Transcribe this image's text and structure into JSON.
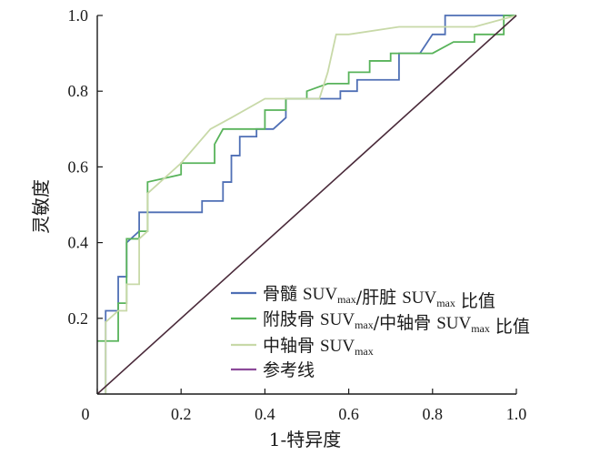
{
  "chart_data": {
    "type": "line",
    "xlabel": "1-特异度",
    "ylabel": "灵敏度",
    "xlim": [
      0,
      1
    ],
    "ylim": [
      0,
      1
    ],
    "x_ticks": [
      "0",
      "0.2",
      "0.4",
      "0.6",
      "0.8",
      "1.0"
    ],
    "y_ticks": [
      "0.2",
      "0.4",
      "0.6",
      "0.8",
      "1.0"
    ],
    "x_tick_values": [
      0,
      0.2,
      0.4,
      0.6,
      0.8,
      1.0
    ],
    "y_tick_values": [
      0.2,
      0.4,
      0.6,
      0.8,
      1.0
    ],
    "grid": false,
    "legend_position": "bottom-right",
    "series": [
      {
        "name": "骨髓 SUVmax/肝脏 SUVmax 比值",
        "legend": [
          {
            "t": "骨髓 ",
            "k": "cjk"
          },
          {
            "t": "SUV",
            "k": "latin"
          },
          {
            "t": "max",
            "k": "sub"
          },
          {
            "t": "/肝脏 ",
            "k": "cjk"
          },
          {
            "t": "SUV",
            "k": "latin"
          },
          {
            "t": "max",
            "k": "sub"
          },
          {
            "t": " 比值",
            "k": "cjk"
          }
        ],
        "color": "#4f6fb5",
        "points": [
          [
            0.02,
            0.0
          ],
          [
            0.02,
            0.22
          ],
          [
            0.05,
            0.22
          ],
          [
            0.05,
            0.31
          ],
          [
            0.07,
            0.31
          ],
          [
            0.07,
            0.4
          ],
          [
            0.1,
            0.43
          ],
          [
            0.1,
            0.48
          ],
          [
            0.25,
            0.48
          ],
          [
            0.25,
            0.51
          ],
          [
            0.3,
            0.51
          ],
          [
            0.3,
            0.56
          ],
          [
            0.32,
            0.56
          ],
          [
            0.32,
            0.63
          ],
          [
            0.34,
            0.63
          ],
          [
            0.34,
            0.68
          ],
          [
            0.38,
            0.68
          ],
          [
            0.38,
            0.7
          ],
          [
            0.42,
            0.7
          ],
          [
            0.45,
            0.73
          ],
          [
            0.45,
            0.78
          ],
          [
            0.58,
            0.78
          ],
          [
            0.58,
            0.8
          ],
          [
            0.62,
            0.8
          ],
          [
            0.62,
            0.83
          ],
          [
            0.72,
            0.83
          ],
          [
            0.72,
            0.9
          ],
          [
            0.77,
            0.9
          ],
          [
            0.8,
            0.95
          ],
          [
            0.83,
            0.95
          ],
          [
            0.83,
            1.0
          ],
          [
            1.0,
            1.0
          ]
        ]
      },
      {
        "name": "附肢骨 SUVmax/中轴骨 SUVmax 比值",
        "legend": [
          {
            "t": "附肢骨 ",
            "k": "cjk"
          },
          {
            "t": "SUV",
            "k": "latin"
          },
          {
            "t": "max",
            "k": "sub"
          },
          {
            "t": "/中轴骨 ",
            "k": "cjk"
          },
          {
            "t": "SUV",
            "k": "latin"
          },
          {
            "t": "max",
            "k": "sub"
          },
          {
            "t": " 比值",
            "k": "cjk"
          }
        ],
        "color": "#58b35a",
        "points": [
          [
            0.0,
            0.14
          ],
          [
            0.05,
            0.14
          ],
          [
            0.05,
            0.24
          ],
          [
            0.07,
            0.24
          ],
          [
            0.07,
            0.41
          ],
          [
            0.1,
            0.41
          ],
          [
            0.1,
            0.43
          ],
          [
            0.12,
            0.43
          ],
          [
            0.12,
            0.56
          ],
          [
            0.2,
            0.58
          ],
          [
            0.2,
            0.61
          ],
          [
            0.28,
            0.61
          ],
          [
            0.28,
            0.66
          ],
          [
            0.3,
            0.7
          ],
          [
            0.4,
            0.7
          ],
          [
            0.4,
            0.75
          ],
          [
            0.45,
            0.75
          ],
          [
            0.45,
            0.78
          ],
          [
            0.5,
            0.78
          ],
          [
            0.5,
            0.8
          ],
          [
            0.55,
            0.82
          ],
          [
            0.6,
            0.82
          ],
          [
            0.6,
            0.85
          ],
          [
            0.65,
            0.85
          ],
          [
            0.65,
            0.88
          ],
          [
            0.7,
            0.88
          ],
          [
            0.7,
            0.9
          ],
          [
            0.8,
            0.9
          ],
          [
            0.85,
            0.93
          ],
          [
            0.9,
            0.93
          ],
          [
            0.9,
            0.95
          ],
          [
            0.97,
            0.95
          ],
          [
            0.97,
            1.0
          ],
          [
            1.0,
            1.0
          ]
        ]
      },
      {
        "name": "中轴骨 SUVmax",
        "legend": [
          {
            "t": "中轴骨 ",
            "k": "cjk"
          },
          {
            "t": "SUV",
            "k": "latin"
          },
          {
            "t": "max",
            "k": "sub"
          }
        ],
        "color": "#c8d9a8",
        "points": [
          [
            0.02,
            0.0
          ],
          [
            0.02,
            0.19
          ],
          [
            0.05,
            0.22
          ],
          [
            0.07,
            0.22
          ],
          [
            0.07,
            0.29
          ],
          [
            0.1,
            0.29
          ],
          [
            0.1,
            0.41
          ],
          [
            0.12,
            0.43
          ],
          [
            0.12,
            0.53
          ],
          [
            0.2,
            0.61
          ],
          [
            0.27,
            0.7
          ],
          [
            0.32,
            0.73
          ],
          [
            0.4,
            0.78
          ],
          [
            0.53,
            0.78
          ],
          [
            0.55,
            0.85
          ],
          [
            0.57,
            0.95
          ],
          [
            0.6,
            0.95
          ],
          [
            0.72,
            0.97
          ],
          [
            0.9,
            0.97
          ],
          [
            1.0,
            1.0
          ]
        ]
      },
      {
        "name": "参考线",
        "legend": [
          {
            "t": "参考线",
            "k": "cjk"
          }
        ],
        "color": "#4a2a3a",
        "legend_color": "#8c4a9a",
        "points": [
          [
            0.0,
            0.0
          ],
          [
            1.0,
            1.0
          ]
        ]
      }
    ]
  }
}
